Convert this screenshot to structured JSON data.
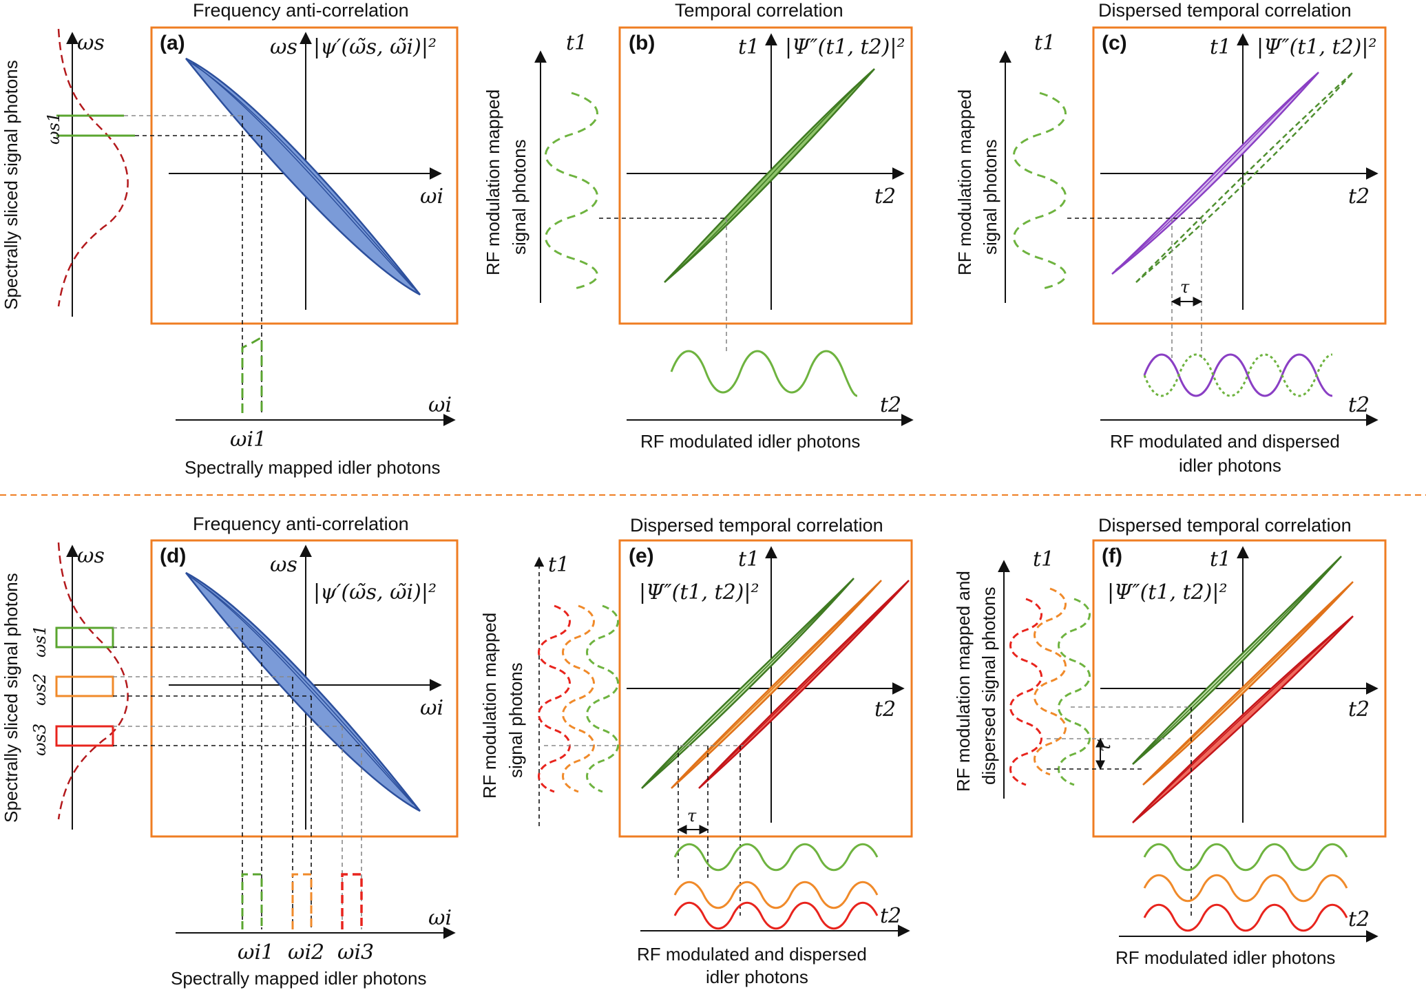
{
  "panels": {
    "a": {
      "tag": "(a)",
      "title": "Frequency anti-correlation",
      "y_axis": "ωs",
      "x_axis": "ωi",
      "formula": "|ψ′(ω̃s, ω̃i)|²",
      "side_axis": "ωs",
      "side_label": "Spectrally sliced signal photons",
      "slice_label": "ωs1",
      "bottom_axis": "ωi",
      "bottom_tick": "ωi1",
      "bottom_label": "Spectrally mapped idler photons"
    },
    "b": {
      "tag": "(b)",
      "title": "Temporal correlation",
      "y_axis": "t1",
      "x_axis": "t2",
      "formula": "|Ψ″(t1, t2)|²",
      "side_axis": "t1",
      "side_label_1": "RF modulation mapped",
      "side_label_2": "signal photons",
      "bottom_axis": "t2",
      "bottom_label": "RF modulated idler photons"
    },
    "c": {
      "tag": "(c)",
      "title": "Dispersed temporal correlation",
      "y_axis": "t1",
      "x_axis": "t2",
      "formula": "|Ψ″(t1, t2)|²",
      "side_axis": "t1",
      "side_label_1": "RF modulation mapped",
      "side_label_2": "signal photons",
      "delay": "τ",
      "bottom_axis": "t2",
      "bottom_label_1": "RF modulated and dispersed",
      "bottom_label_2": "idler photons"
    },
    "d": {
      "tag": "(d)",
      "title": "Frequency anti-correlation",
      "y_axis": "ωs",
      "x_axis": "ωi",
      "formula": "|ψ′(ω̃s, ω̃i)|²",
      "side_axis": "ωs",
      "side_label": "Spectrally sliced signal photons",
      "slice_labels": [
        "ωs1",
        "ωs2",
        "ωs3"
      ],
      "bottom_axis": "ωi",
      "bottom_ticks": [
        "ωi1",
        "ωi2",
        "ωi3"
      ],
      "bottom_label": "Spectrally mapped idler photons"
    },
    "e": {
      "tag": "(e)",
      "title": "Dispersed temporal correlation",
      "y_axis": "t1",
      "x_axis": "t2",
      "formula": "|Ψ″(t1, t2)|²",
      "side_axis": "t1",
      "side_label_1": "RF modulation mapped",
      "side_label_2": "signal photons",
      "delay": "τ",
      "bottom_axis": "t2",
      "bottom_label_1": "RF modulated and dispersed",
      "bottom_label_2": "idler photons"
    },
    "f": {
      "tag": "(f)",
      "title": "Dispersed temporal correlation",
      "y_axis": "t1",
      "x_axis": "t2",
      "formula": "|Ψ″(t1, t2)|²",
      "side_axis": "t1",
      "side_label_1": "RF modulation mapped and",
      "side_label_2": "dispersed signal photons",
      "delay": "τ′",
      "bottom_axis": "t2",
      "bottom_label": "RF modulated idler photons"
    }
  },
  "colors": {
    "frame": "#ef7d22",
    "blue": "#3b63b8",
    "green": "#4f8f2f",
    "light_green": "#76b947",
    "orange": "#f08a2a",
    "red": "#e8241d",
    "purple": "#8a3fc4",
    "dark_red": "#b3191c",
    "divider": "#ef7d22"
  }
}
